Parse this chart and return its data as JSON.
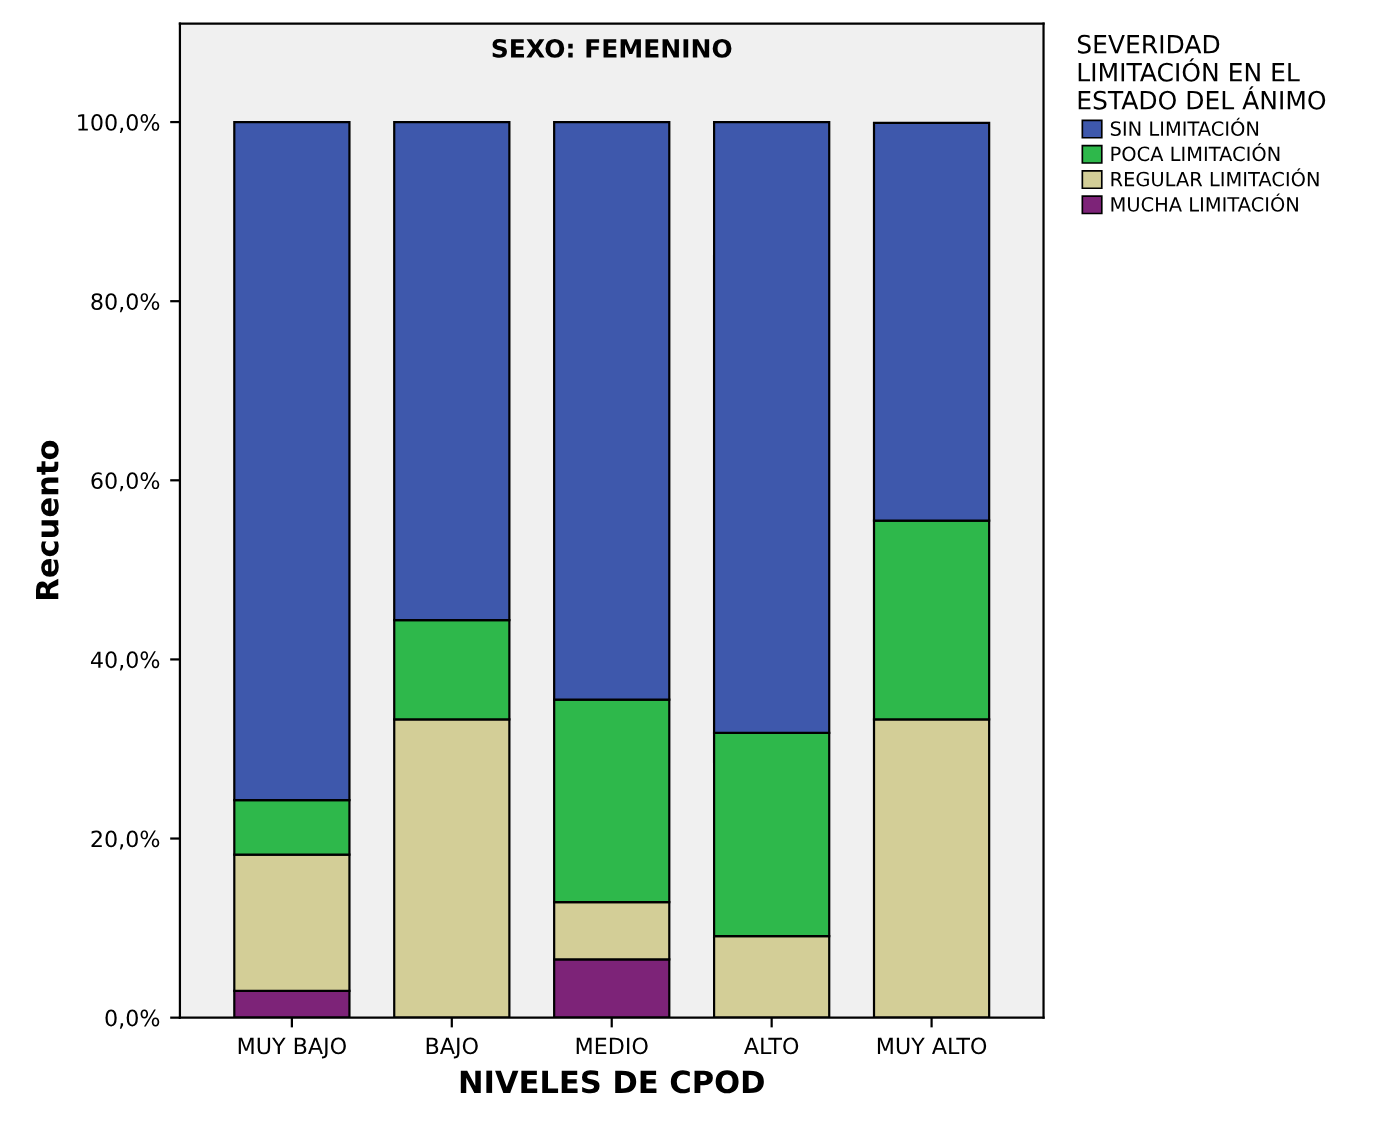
{
  "chart_data": {
    "type": "bar",
    "title": "SEXO: FEMENINO",
    "xlabel": "NIVELES DE CPOD",
    "ylabel": "Recuento",
    "legend_title": "SEVERIDAD LIMITACIÓN EN EL ESTADO DEL ÁNIMO",
    "categories": [
      "MUY BAJO",
      "BAJO",
      "MEDIO",
      "ALTO",
      "MUY ALTO"
    ],
    "stacked": true,
    "legend": "right",
    "grid": false,
    "ylim": [
      0,
      111
    ],
    "yticks": [
      {
        "value": 0,
        "label": "0,0%"
      },
      {
        "value": 20,
        "label": "20,0%"
      },
      {
        "value": 40,
        "label": "40,0%"
      },
      {
        "value": 60,
        "label": "60,0%"
      },
      {
        "value": 80,
        "label": "80,0%"
      },
      {
        "value": 100,
        "label": "100,0%"
      }
    ],
    "series": [
      {
        "name": "MUCHA LIMITACIÓN",
        "color": "#7d2378",
        "values": [
          3.0,
          0,
          6.5,
          0,
          0
        ]
      },
      {
        "name": "REGULAR LIMITACIÓN",
        "color": "#d3ce97",
        "values": [
          15.2,
          33.3,
          6.4,
          9.1,
          33.3
        ]
      },
      {
        "name": "POCA LIMITACIÓN",
        "color": "#2eb84b",
        "values": [
          6.1,
          11.1,
          22.6,
          22.7,
          22.2
        ]
      },
      {
        "name": "SIN LIMITACIÓN",
        "color": "#3e58ac",
        "values": [
          75.7,
          55.6,
          64.5,
          68.2,
          44.4
        ]
      }
    ]
  }
}
